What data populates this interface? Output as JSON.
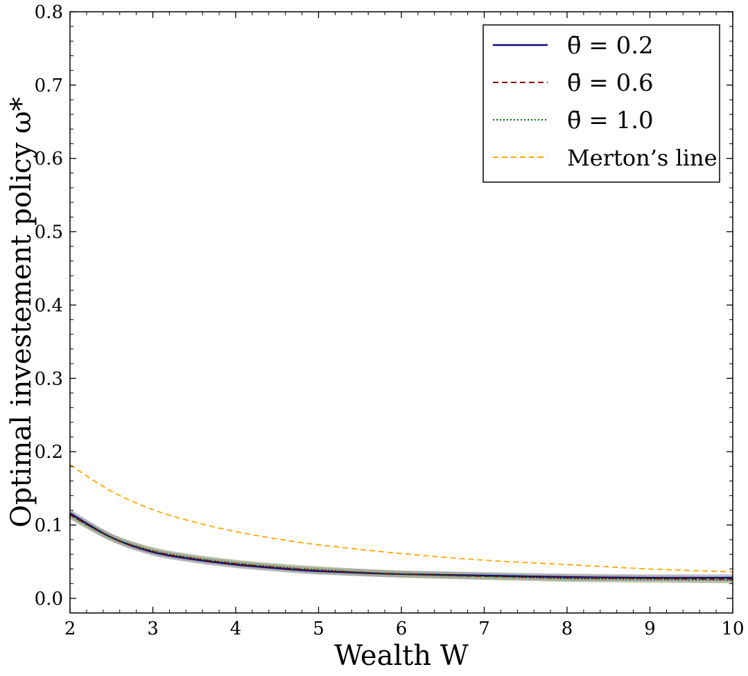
{
  "chart_data": {
    "type": "line",
    "xlabel": "Wealth W",
    "ylabel": "Optimal investement policy ω*",
    "xlim": [
      2,
      10
    ],
    "ylim": [
      -0.02,
      0.8
    ],
    "xticks": [
      "2",
      "3",
      "4",
      "5",
      "6",
      "7",
      "8",
      "9",
      "10"
    ],
    "yticks": [
      "0.0",
      "0.1",
      "0.2",
      "0.3",
      "0.4",
      "0.5",
      "0.6",
      "0.7",
      "0.8"
    ],
    "grid": false,
    "legend_position": "top-right",
    "series": [
      {
        "name": "θ̄ = 0.2",
        "color": "#0a0a82",
        "style": "solid",
        "x": [
          2,
          2.5,
          3,
          3.5,
          4,
          4.5,
          5,
          6,
          7,
          8,
          9,
          10
        ],
        "y": [
          0.116,
          0.083,
          0.063,
          0.053,
          0.046,
          0.041,
          0.037,
          0.033,
          0.031,
          0.029,
          0.028,
          0.028
        ]
      },
      {
        "name": "θ̄ = 0.6",
        "color": "#8b0000",
        "style": "dashed",
        "x": [
          2,
          2.5,
          3,
          3.5,
          4,
          4.5,
          5,
          6,
          7,
          8,
          9,
          10
        ],
        "y": [
          0.114,
          0.083,
          0.064,
          0.054,
          0.047,
          0.042,
          0.038,
          0.033,
          0.03,
          0.028,
          0.027,
          0.026
        ]
      },
      {
        "name": "θ̄ = 1.0",
        "color": "#006400",
        "style": "dotted",
        "x": [
          2,
          2.5,
          3,
          3.5,
          4,
          4.5,
          5,
          6,
          7,
          8,
          9,
          10
        ],
        "y": [
          0.113,
          0.083,
          0.065,
          0.055,
          0.048,
          0.043,
          0.039,
          0.033,
          0.03,
          0.027,
          0.026,
          0.025
        ]
      },
      {
        "name": "Merton’s line",
        "color": "#ffa500",
        "style": "dashed",
        "x": [
          2,
          2.5,
          3,
          3.5,
          4,
          4.5,
          5,
          6,
          7,
          8,
          9,
          10
        ],
        "y": [
          0.182,
          0.146,
          0.121,
          0.104,
          0.091,
          0.081,
          0.073,
          0.061,
          0.052,
          0.046,
          0.04,
          0.036
        ]
      }
    ]
  }
}
